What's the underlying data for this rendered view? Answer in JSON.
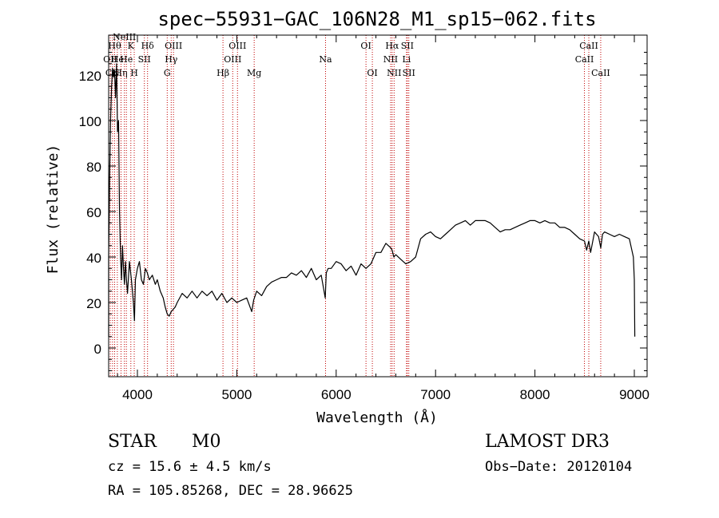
{
  "chart_data": {
    "type": "line",
    "title": "spec−55931−GAC_106N28_M1_sp15−062.fits",
    "xlabel": "Wavelength (Å)",
    "ylabel": "Flux (relative)",
    "xlim": [
      3700,
      9100
    ],
    "ylim": [
      -13,
      137
    ],
    "xticks": [
      4000,
      5000,
      6000,
      7000,
      8000,
      9000
    ],
    "yticks": [
      0,
      20,
      40,
      60,
      80,
      100,
      120
    ],
    "series": [
      {
        "x": [
          3700,
          3710,
          3720,
          3730,
          3740,
          3750,
          3760,
          3770,
          3780,
          3790,
          3800,
          3810,
          3820,
          3830,
          3840,
          3850,
          3860,
          3870,
          3880,
          3890,
          3900,
          3920,
          3940,
          3960,
          3970,
          3980,
          4000,
          4020,
          4040,
          4060,
          4080,
          4100,
          4120,
          4150,
          4180,
          4200,
          4230,
          4260,
          4280,
          4300,
          4320,
          4340,
          4360,
          4380,
          4400,
          4450,
          4500,
          4550,
          4600,
          4650,
          4700,
          4750,
          4800,
          4850,
          4900,
          4950,
          5000,
          5050,
          5100,
          5150,
          5170,
          5200,
          5250,
          5300,
          5350,
          5400,
          5450,
          5500,
          5550,
          5600,
          5650,
          5700,
          5750,
          5800,
          5850,
          5890,
          5900,
          5920,
          5950,
          6000,
          6050,
          6100,
          6150,
          6200,
          6250,
          6300,
          6350,
          6400,
          6450,
          6500,
          6550,
          6563,
          6580,
          6600,
          6650,
          6700,
          6750,
          6800,
          6850,
          6900,
          6950,
          7000,
          7050,
          7100,
          7150,
          7200,
          7250,
          7300,
          7350,
          7400,
          7450,
          7500,
          7550,
          7600,
          7650,
          7700,
          7750,
          7800,
          7850,
          7900,
          7950,
          8000,
          8050,
          8100,
          8150,
          8200,
          8250,
          8300,
          8350,
          8400,
          8450,
          8498,
          8520,
          8542,
          8560,
          8600,
          8640,
          8662,
          8680,
          8700,
          8750,
          8800,
          8850,
          8900,
          8950,
          8990,
          9000,
          9005
        ],
        "y": [
          5,
          40,
          75,
          100,
          115,
          123,
          119,
          122,
          110,
          125,
          95,
          100,
          60,
          40,
          30,
          45,
          35,
          28,
          38,
          30,
          24,
          38,
          30,
          20,
          12,
          30,
          35,
          38,
          30,
          28,
          35,
          33,
          30,
          32,
          28,
          30,
          25,
          22,
          18,
          15,
          14,
          16,
          17,
          18,
          20,
          24,
          22,
          25,
          22,
          25,
          23,
          25,
          21,
          24,
          20,
          22,
          20,
          21,
          22,
          16,
          21,
          25,
          23,
          27,
          29,
          30,
          31,
          31,
          33,
          32,
          34,
          31,
          35,
          30,
          32,
          22,
          33,
          35,
          35,
          38,
          37,
          34,
          36,
          32,
          37,
          35,
          37,
          42,
          42,
          46,
          44,
          43,
          40,
          41,
          39,
          37,
          38,
          40,
          48,
          50,
          51,
          49,
          48,
          50,
          52,
          54,
          55,
          56,
          54,
          56,
          56,
          56,
          55,
          53,
          51,
          52,
          52,
          53,
          54,
          55,
          56,
          56,
          55,
          56,
          55,
          55,
          53,
          53,
          52,
          50,
          48,
          47,
          43,
          47,
          42,
          51,
          49,
          44,
          50,
          51,
          50,
          49,
          50,
          49,
          48,
          40,
          30,
          5
        ]
      }
    ],
    "lines": [
      {
        "x": 3727,
        "label": "OII",
        "row": 1
      },
      {
        "x": 3750,
        "label": "CN",
        "row": 2
      },
      {
        "x": 3771,
        "label": "Hθ",
        "row": 0
      },
      {
        "x": 3798,
        "label": "He",
        "row": 1
      },
      {
        "x": 3835,
        "label": "Hη",
        "row": 2
      },
      {
        "x": 3869,
        "label": "NeIII",
        "row": -1
      },
      {
        "x": 3889,
        "label": "He",
        "row": 1
      },
      {
        "x": 3934,
        "label": "K",
        "row": 0
      },
      {
        "x": 3968,
        "label": "H",
        "row": 2
      },
      {
        "x": 4070,
        "label": "SII",
        "row": 1
      },
      {
        "x": 4102,
        "label": "Hδ",
        "row": 0
      },
      {
        "x": 4300,
        "label": "G",
        "row": 2
      },
      {
        "x": 4340,
        "label": "Hγ",
        "row": 1
      },
      {
        "x": 4363,
        "label": "OIII",
        "row": 0
      },
      {
        "x": 4861,
        "label": "Hβ",
        "row": 2
      },
      {
        "x": 4959,
        "label": "OIII",
        "row": 1
      },
      {
        "x": 5007,
        "label": "OIII",
        "row": 0
      },
      {
        "x": 5175,
        "label": "Mg",
        "row": 2
      },
      {
        "x": 5893,
        "label": "Na",
        "row": 1
      },
      {
        "x": 6300,
        "label": "OI",
        "row": 0
      },
      {
        "x": 6364,
        "label": "OI",
        "row": 2
      },
      {
        "x": 6548,
        "label": "NII",
        "row": 1
      },
      {
        "x": 6563,
        "label": "Hα",
        "row": 0
      },
      {
        "x": 6583,
        "label": "NII",
        "row": 2
      },
      {
        "x": 6708,
        "label": "Li",
        "row": 1
      },
      {
        "x": 6716,
        "label": "SII",
        "row": 0
      },
      {
        "x": 6731,
        "label": "SII",
        "row": 2
      },
      {
        "x": 8498,
        "label": "CaII",
        "row": 1
      },
      {
        "x": 8542,
        "label": "CaII",
        "row": 0
      },
      {
        "x": 8662,
        "label": "CaII",
        "row": 2
      }
    ],
    "grid": false,
    "line_color": "#000000",
    "marker_color": "#c00000"
  },
  "info": {
    "class": "STAR",
    "subclass": "M0",
    "survey": "LAMOST DR3",
    "cz": "cz = 15.6 ± 4.5 km/s",
    "obs_date": "Obs−Date: 20120104",
    "coords": "RA = 105.85268, DEC =  28.96625"
  }
}
